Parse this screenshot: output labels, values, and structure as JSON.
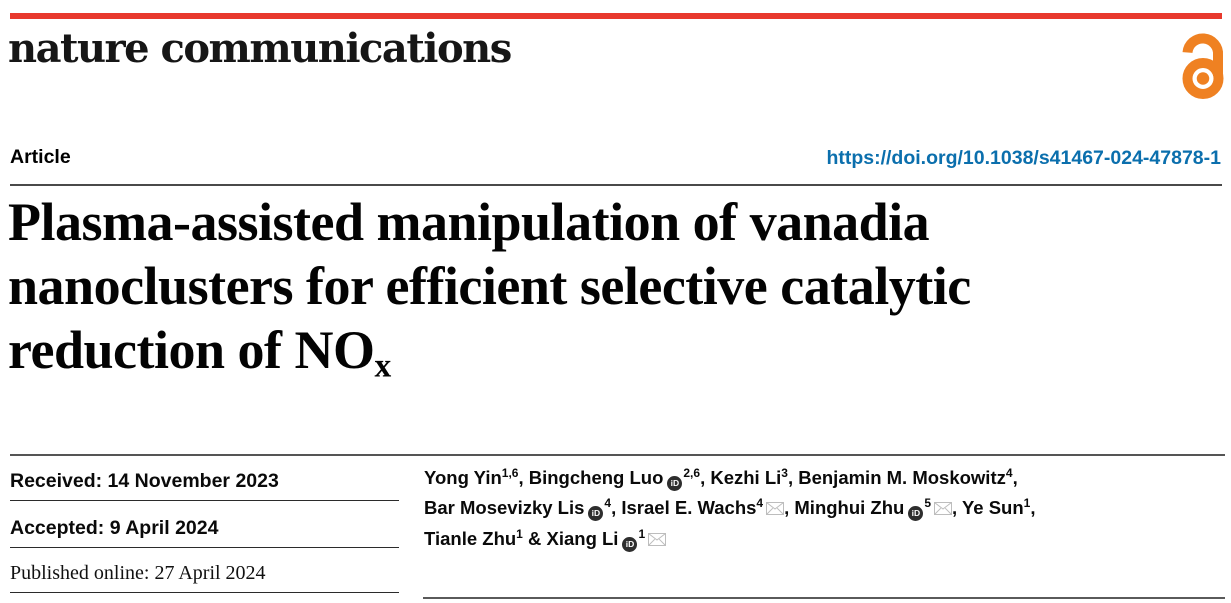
{
  "brand": {
    "journal": "nature communications",
    "bar_color": "#e8392d",
    "open_access_color": "#ef8122",
    "open_access_icon": "open-access-lock-icon"
  },
  "header": {
    "article_label": "Article",
    "doi": "https://doi.org/10.1038/s41467-024-47878-1",
    "link_color": "#0b6fad"
  },
  "title": {
    "line1": "Plasma-assisted manipulation of vanadia",
    "line2": "nanoclusters for efficient selective catalytic",
    "line3_text": "reduction of NO",
    "line3_subscript": "x"
  },
  "dates": {
    "received": "Received: 14 November 2023",
    "accepted": "Accepted: 9 April 2024",
    "published": "Published online: 27 April 2024"
  },
  "icons": {
    "orcid": "orcid-id-icon",
    "orcid_glyph": "iD",
    "mail": "envelope-icon"
  },
  "authors": {
    "lines": [
      [
        {
          "t": "Yong Yin",
          "sup": "1,6"
        },
        {
          "t": ", "
        },
        {
          "t": "Bingcheng Luo",
          "orcid": true,
          "sup": "2,6"
        },
        {
          "t": ", "
        },
        {
          "t": "Kezhi Li",
          "sup": "3"
        },
        {
          "t": ", "
        },
        {
          "t": "Benjamin M. Moskowitz",
          "sup": "4"
        },
        {
          "t": ","
        }
      ],
      [
        {
          "t": "Bar Mosevizky Lis",
          "orcid": true,
          "sup": "4"
        },
        {
          "t": ", "
        },
        {
          "t": "Israel E. Wachs",
          "sup": "4",
          "mail": true
        },
        {
          "t": ", "
        },
        {
          "t": "Minghui Zhu",
          "orcid": true,
          "sup": "5",
          "mail": true
        },
        {
          "t": ", "
        },
        {
          "t": "Ye Sun",
          "sup": "1"
        },
        {
          "t": ","
        }
      ],
      [
        {
          "t": "Tianle Zhu",
          "sup": "1"
        },
        {
          "t": " & "
        },
        {
          "t": "Xiang Li",
          "orcid": true,
          "sup": "1",
          "mail": true
        }
      ]
    ]
  }
}
